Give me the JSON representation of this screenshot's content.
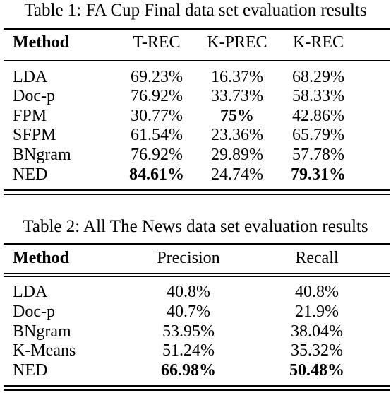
{
  "table1": {
    "caption": "Table 1: FA Cup Final data set evaluation results",
    "headers": [
      "Method",
      "T-REC",
      "K-PREC",
      "K-REC"
    ],
    "rows": [
      [
        "LDA",
        "69.23%",
        "16.37%",
        "68.29%"
      ],
      [
        "Doc-p",
        "76.92%",
        "33.73%",
        "58.33%"
      ],
      [
        "FPM",
        "30.77%",
        "75%",
        "42.86%"
      ],
      [
        "SFPM",
        "61.54%",
        "23.36%",
        "65.79%"
      ],
      [
        "BNgram",
        "76.92%",
        "29.89%",
        "57.78%"
      ],
      [
        "NED",
        "84.61%",
        "24.74%",
        "79.31%"
      ]
    ]
  },
  "table2": {
    "caption": "Table 2: All The News data set evaluation results",
    "headers": [
      "Method",
      "Precision",
      "Recall"
    ],
    "rows": [
      [
        "LDA",
        "40.8%",
        "40.8%"
      ],
      [
        "Doc-p",
        "40.7%",
        "21.9%"
      ],
      [
        "BNgram",
        "53.95%",
        "38.04%"
      ],
      [
        "K-Means",
        "51.24%",
        "35.32%"
      ],
      [
        "NED",
        "66.98%",
        "50.48%"
      ]
    ]
  }
}
